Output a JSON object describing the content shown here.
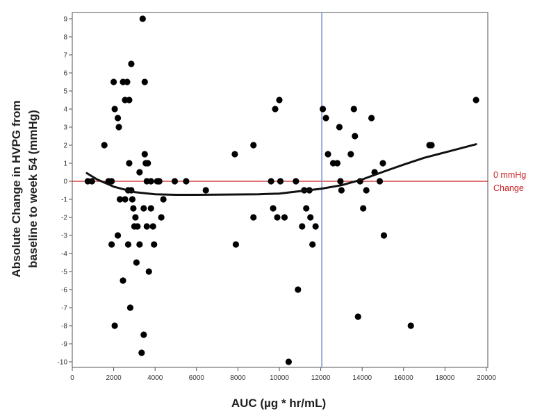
{
  "chart_data": {
    "type": "scatter",
    "xlabel": "AUC (µg * hr/mL)",
    "ylabel_lines": [
      "Absolute Change in HVPG from",
      "baseline to week 54 (mmHg)"
    ],
    "xlim": [
      0,
      20000
    ],
    "ylim": [
      -10,
      9
    ],
    "x_ticks": [
      0,
      2000,
      4000,
      6000,
      8000,
      10000,
      12000,
      14000,
      16000,
      18000,
      20000
    ],
    "y_ticks": [
      -10,
      -9,
      -8,
      -7,
      -6,
      -5,
      -4,
      -3,
      -2,
      -1,
      0,
      1,
      2,
      3,
      4,
      5,
      6,
      7,
      8,
      9
    ],
    "grid": false,
    "reference_line": {
      "y": 0,
      "color": "#cc2222",
      "label_lines": [
        "0 mmHg",
        "Change"
      ]
    },
    "vertical_line": {
      "x": 12050,
      "color": "#5b7fc7"
    },
    "points": [
      [
        750,
        0
      ],
      [
        950,
        0
      ],
      [
        1550,
        2
      ],
      [
        1750,
        0
      ],
      [
        1900,
        0
      ],
      [
        1900,
        -3.5
      ],
      [
        2000,
        5.5
      ],
      [
        2050,
        -8
      ],
      [
        2050,
        4
      ],
      [
        2200,
        3.5
      ],
      [
        2200,
        -3
      ],
      [
        2250,
        3
      ],
      [
        2300,
        -1
      ],
      [
        2450,
        5.5
      ],
      [
        2450,
        -5.5
      ],
      [
        2550,
        4.5
      ],
      [
        2550,
        -1
      ],
      [
        2650,
        5.5
      ],
      [
        2700,
        -3.5
      ],
      [
        2700,
        -0.5
      ],
      [
        2750,
        4.5
      ],
      [
        2750,
        1
      ],
      [
        2800,
        -7
      ],
      [
        2850,
        -0.5
      ],
      [
        2850,
        6.5
      ],
      [
        2900,
        -1
      ],
      [
        2950,
        -1.5
      ],
      [
        3000,
        -2.5
      ],
      [
        3050,
        -2
      ],
      [
        3100,
        -4.5
      ],
      [
        3150,
        -2.5
      ],
      [
        3250,
        0.5
      ],
      [
        3250,
        -3.5
      ],
      [
        3350,
        -9.5
      ],
      [
        3400,
        9
      ],
      [
        3450,
        -8.5
      ],
      [
        3450,
        -1.5
      ],
      [
        3500,
        1.5
      ],
      [
        3500,
        5.5
      ],
      [
        3550,
        1
      ],
      [
        3600,
        0
      ],
      [
        3600,
        -2.5
      ],
      [
        3650,
        1
      ],
      [
        3700,
        -5
      ],
      [
        3800,
        -1.5
      ],
      [
        3800,
        0
      ],
      [
        3900,
        -2.5
      ],
      [
        3950,
        -3.5
      ],
      [
        4100,
        0
      ],
      [
        4200,
        0
      ],
      [
        4200,
        0
      ],
      [
        4300,
        -2
      ],
      [
        4400,
        -1
      ],
      [
        4950,
        0
      ],
      [
        5500,
        0
      ],
      [
        6450,
        -0.5
      ],
      [
        7850,
        1.5
      ],
      [
        7900,
        -3.5
      ],
      [
        8750,
        2
      ],
      [
        8750,
        -2
      ],
      [
        9600,
        0
      ],
      [
        9700,
        -1.5
      ],
      [
        9800,
        4
      ],
      [
        9900,
        -2
      ],
      [
        10000,
        4.5
      ],
      [
        10050,
        0
      ],
      [
        10250,
        -2
      ],
      [
        10450,
        -10
      ],
      [
        10800,
        0
      ],
      [
        10900,
        -6
      ],
      [
        11100,
        -2.5
      ],
      [
        11200,
        -0.5
      ],
      [
        11300,
        -1.5
      ],
      [
        11450,
        -0.5
      ],
      [
        11500,
        -2
      ],
      [
        11600,
        -3.5
      ],
      [
        11750,
        -2.5
      ],
      [
        12100,
        4
      ],
      [
        12250,
        3.5
      ],
      [
        12350,
        1.5
      ],
      [
        12600,
        1
      ],
      [
        12800,
        1
      ],
      [
        12900,
        3
      ],
      [
        12950,
        0
      ],
      [
        13000,
        -0.5
      ],
      [
        13450,
        1.5
      ],
      [
        13600,
        4
      ],
      [
        13650,
        2.5
      ],
      [
        13800,
        -7.5
      ],
      [
        13900,
        0
      ],
      [
        14050,
        -1.5
      ],
      [
        14200,
        -0.5
      ],
      [
        14450,
        3.5
      ],
      [
        14600,
        0.5
      ],
      [
        14850,
        0
      ],
      [
        15000,
        1
      ],
      [
        15050,
        -3
      ],
      [
        16350,
        -8
      ],
      [
        17250,
        2
      ],
      [
        17350,
        2
      ],
      [
        19500,
        4.5
      ]
    ],
    "fit_curve": {
      "color": "#111111",
      "points": [
        [
          700,
          0.45
        ],
        [
          1200,
          0.1
        ],
        [
          2000,
          -0.3
        ],
        [
          3000,
          -0.6
        ],
        [
          4000,
          -0.72
        ],
        [
          5000,
          -0.75
        ],
        [
          6000,
          -0.75
        ],
        [
          7000,
          -0.74
        ],
        [
          8000,
          -0.73
        ],
        [
          9000,
          -0.72
        ],
        [
          10000,
          -0.68
        ],
        [
          11000,
          -0.55
        ],
        [
          12000,
          -0.42
        ],
        [
          13000,
          -0.22
        ],
        [
          14000,
          0.1
        ],
        [
          15000,
          0.52
        ],
        [
          16000,
          0.92
        ],
        [
          17000,
          1.3
        ],
        [
          18000,
          1.6
        ],
        [
          19500,
          2.05
        ]
      ]
    }
  }
}
